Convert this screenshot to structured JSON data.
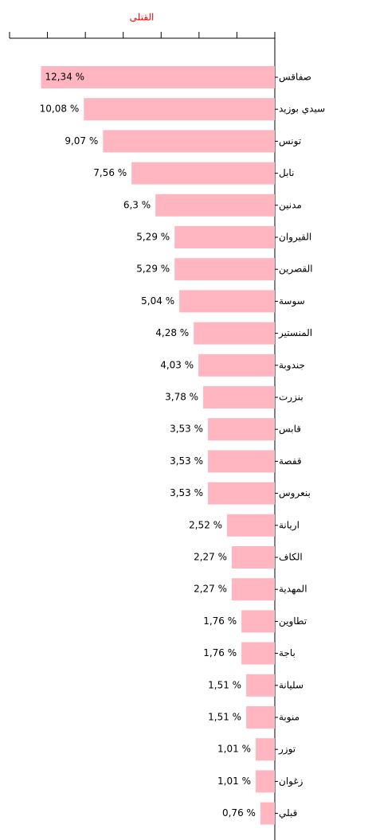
{
  "chart_data": {
    "type": "bar",
    "orientation": "horizontal",
    "title": "القتلى",
    "title_color": "#ff0000",
    "categories": [
      "صفاقس",
      "سيدي بوزيد",
      "تونس",
      "نابل",
      "مدنين",
      "القيروان",
      "القصرين",
      "سوسة",
      "المنستير",
      "جندوبة",
      "بنزرت",
      "قابس",
      "قفصة",
      "بنعروس",
      "اريانة",
      "الكاف",
      "المهدية",
      "تطاوين",
      "باجة",
      "سليانة",
      "منوبة",
      "توزر",
      "زغوان",
      "قبلي"
    ],
    "values": [
      12.34,
      10.08,
      9.07,
      7.56,
      6.3,
      5.29,
      5.29,
      5.04,
      4.28,
      4.03,
      3.78,
      3.53,
      3.53,
      3.53,
      2.52,
      2.27,
      2.27,
      1.76,
      1.76,
      1.51,
      1.51,
      1.01,
      1.01,
      0.76
    ],
    "value_labels": [
      "12,34 %",
      "10,08 %",
      "9,07 %",
      "7,56 %",
      "6,3 %",
      "5,29 %",
      "5,29 %",
      "5,04 %",
      "4,28 %",
      "4,03 %",
      "3,78 %",
      "3,53 %",
      "3,53 %",
      "3,53 %",
      "2,52 %",
      "2,27 %",
      "2,27 %",
      "1,76 %",
      "1,76 %",
      "1,51 %",
      "1,51 %",
      "1,01 %",
      "1,01 %",
      "0,76 %"
    ],
    "color": "#ffb6c1",
    "xlim": [
      0,
      14
    ],
    "xticks": [
      0,
      2,
      4,
      6,
      8,
      10,
      12,
      14
    ],
    "reversed_x": true
  }
}
